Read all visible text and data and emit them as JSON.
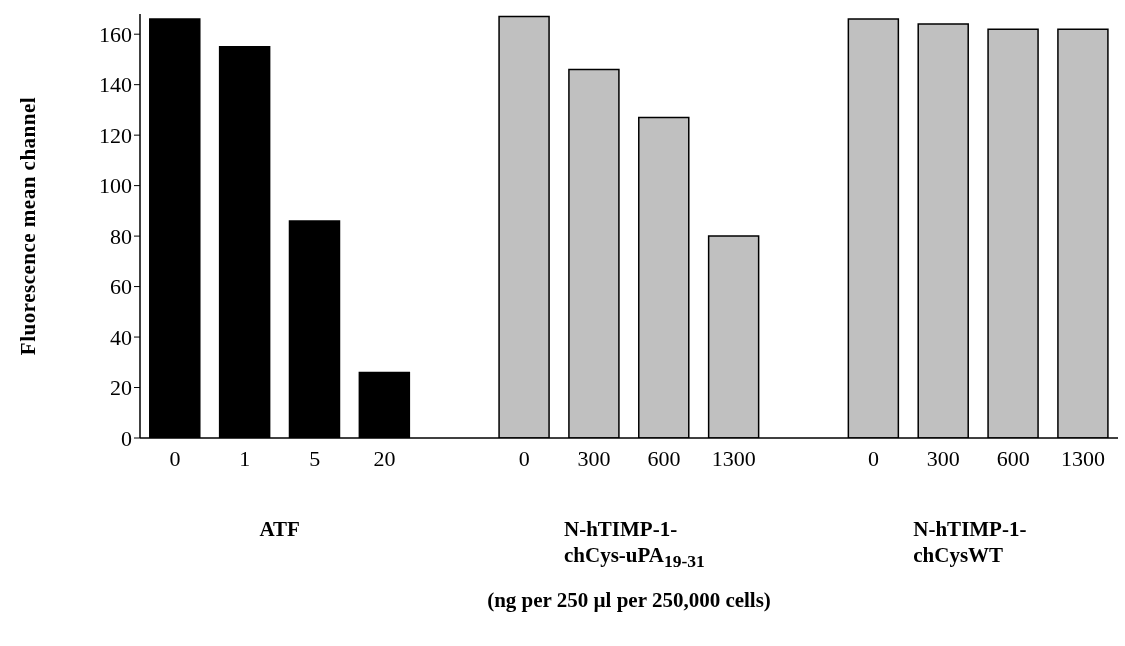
{
  "chart_data": {
    "type": "bar",
    "categories": [
      "0",
      "1",
      "5",
      "20",
      null,
      "0",
      "300",
      "600",
      "1300",
      null,
      "0",
      "300",
      "600",
      "1300"
    ],
    "values": [
      166,
      155,
      86,
      26,
      null,
      167,
      146,
      127,
      80,
      null,
      166,
      164,
      162,
      162
    ],
    "colors": [
      "#000000",
      "#000000",
      "#000000",
      "#000000",
      null,
      "#c0c0c0",
      "#c0c0c0",
      "#c0c0c0",
      "#c0c0c0",
      null,
      "#c0c0c0",
      "#c0c0c0",
      "#c0c0c0",
      "#c0c0c0"
    ],
    "ylabel": "Fluorescence mean channel",
    "annotations": [
      "ATF",
      "N-hTIMP-1-chCys-uPA$_{19-31}$",
      "N-hTIMP-1-chCysWT",
      "(ng per 250 µl per 250,000 cells)"
    ],
    "ylim": [
      0,
      168
    ],
    "yticks": [
      0,
      20,
      40,
      60,
      80,
      100,
      120,
      140,
      160
    ],
    "grid": false,
    "legend": false
  }
}
